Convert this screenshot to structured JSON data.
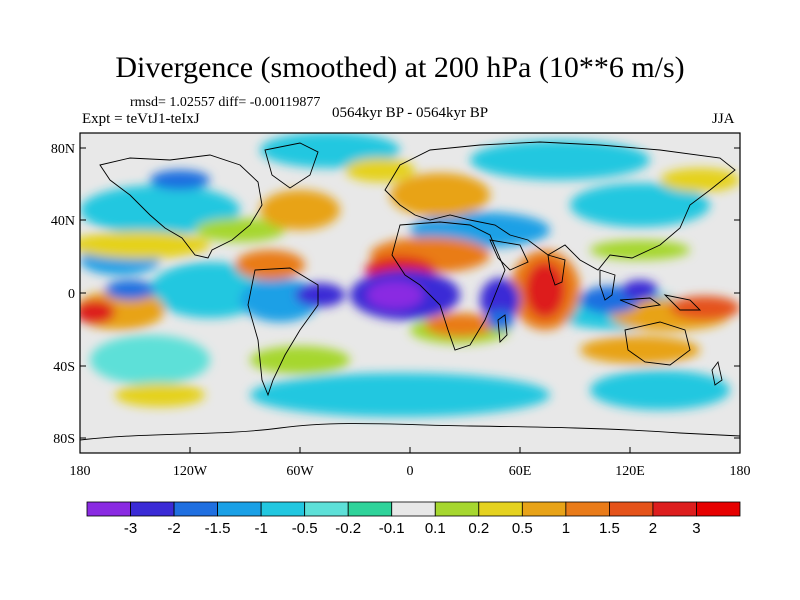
{
  "header": {
    "title": "Divergence (smoothed) at 200 hPa (10**6 m/s)",
    "stats": "rmsd= 1.02557  diff= -0.00119877",
    "experiment": "Expt = teVtJ1-teIxJ",
    "period": "0564kyr BP - 0564kyr BP",
    "season": "JJA"
  },
  "axes": {
    "lat_labels": [
      "80N",
      "40N",
      "0",
      "40S",
      "80S"
    ],
    "lon_labels": [
      "180",
      "120W",
      "60W",
      "0",
      "60E",
      "120E",
      "180"
    ]
  },
  "colorbar": {
    "labels": [
      "-3",
      "-2",
      "-1.5",
      "-1",
      "-0.5",
      "-0.2",
      "-0.1",
      "0.1",
      "0.2",
      "0.5",
      "1",
      "1.5",
      "2",
      "3"
    ],
    "colors": [
      "#8a2be2",
      "#3b2bd6",
      "#1f6fe0",
      "#1aa0e6",
      "#22c7e0",
      "#5de0d8",
      "#2fd39a",
      "#e8e8e8",
      "#a6d72f",
      "#e5d21f",
      "#e8a318",
      "#e97b19",
      "#e5531a",
      "#dd1e1e",
      "#e60000"
    ]
  },
  "map_colors": {
    "ocean_bg": "#e8e8e8",
    "coast": "#000000"
  }
}
